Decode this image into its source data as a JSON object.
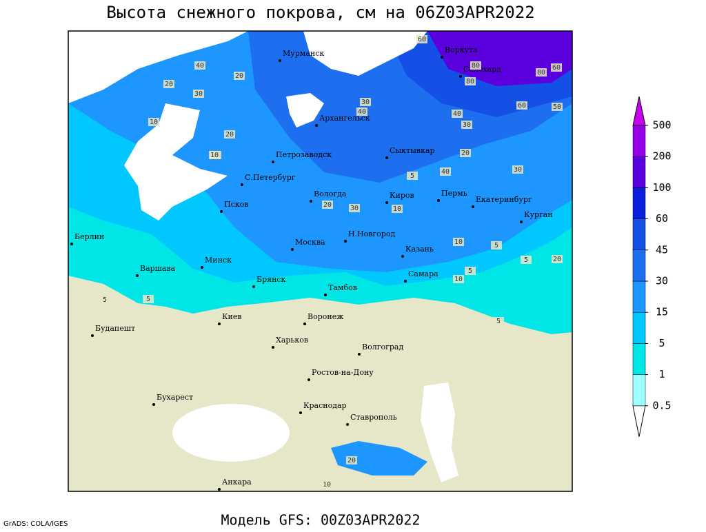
{
  "title": "Высота снежного покрова, см на 06Z03APR2022",
  "footer": "Модель GFS: 00Z03APR2022",
  "credit": "GrADS: COLA/IGES",
  "colorbar": {
    "levels": [
      0.5,
      1,
      5,
      15,
      30,
      45,
      60,
      100,
      200,
      500
    ],
    "colors": [
      "#ffffff",
      "#a0ffff",
      "#00e6e6",
      "#00c8ff",
      "#1e96ff",
      "#1e6ef0",
      "#1450e6",
      "#0a1edc",
      "#5a00dc",
      "#9600e6",
      "#c800f0"
    ]
  },
  "cities": [
    "Мурманск",
    "Воркута",
    "Салехард",
    "Архангельск",
    "Петрозаводск",
    "Сыктывкар",
    "С.Петербург",
    "Вологда",
    "Киров",
    "Пермь",
    "Екатеринбург",
    "Курган",
    "Псков",
    "Берлин",
    "Н.Новгород",
    "Москва",
    "Казань",
    "Минск",
    "Варшава",
    "Самара",
    "Брянск",
    "Тамбов",
    "Киев",
    "Воронеж",
    "Будапешт",
    "Харьков",
    "Волгоград",
    "Ростов-на-Дону",
    "Бухарест",
    "Краснодар",
    "Ставрополь",
    "Анкара"
  ],
  "contour_labels": [
    40,
    20,
    30,
    20,
    10,
    30,
    40,
    60,
    80,
    60,
    80,
    80,
    60,
    40,
    50,
    30,
    10,
    20,
    10,
    40,
    30,
    20,
    30,
    20,
    10,
    5,
    5,
    5,
    10,
    5,
    20,
    10,
    5,
    5,
    5,
    20,
    10
  ]
}
